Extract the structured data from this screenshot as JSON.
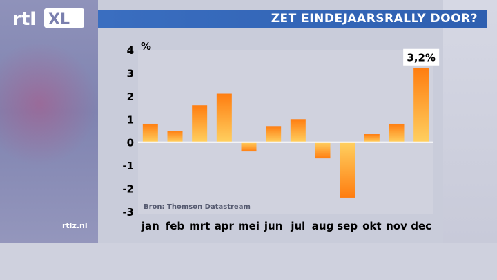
{
  "header": {
    "logo_text": "rtl XL",
    "title": "ZET EINDEJAARSRALLY DOOR?"
  },
  "footer": {
    "website": "rtlz.nl"
  },
  "colors": {
    "title_bar": "#3263b5",
    "bar_top": "#ff7d10",
    "bar_bottom": "#ffd060",
    "plot_bg": "#d0d2de"
  },
  "chart_data": {
    "type": "bar",
    "title": "ZET EINDEJAARSRALLY DOOR?",
    "ylabel": "%",
    "ylim": [
      -3,
      4
    ],
    "yticks": [
      4,
      3,
      2,
      1,
      0,
      -1,
      -2,
      -3
    ],
    "categories": [
      "jan",
      "feb",
      "mrt",
      "apr",
      "mei",
      "jun",
      "jul",
      "aug",
      "sep",
      "okt",
      "nov",
      "dec"
    ],
    "values": [
      0.8,
      0.5,
      1.6,
      2.1,
      -0.4,
      0.7,
      1.0,
      -0.7,
      -2.4,
      0.35,
      0.8,
      3.2
    ],
    "data_labels": {
      "dec": "3,2%"
    },
    "source": "Bron: Thomson Datastream",
    "grid": false,
    "legend": "none"
  }
}
